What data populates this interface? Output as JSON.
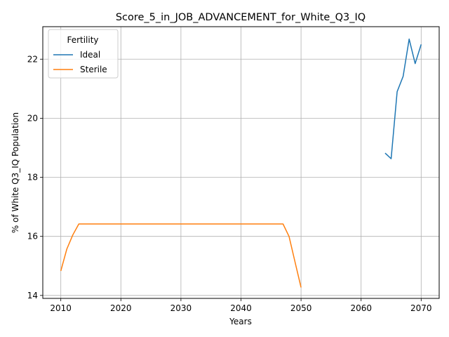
{
  "chart_data": {
    "type": "line",
    "title": "Score_5_in_JOB_ADVANCEMENT_for_White_Q3_IQ",
    "xlabel": "Years",
    "ylabel": "% of White Q3_IQ Population",
    "xlim": [
      2007,
      2073
    ],
    "ylim": [
      13.9,
      23.1
    ],
    "xticks": [
      2010,
      2020,
      2030,
      2040,
      2050,
      2060,
      2070
    ],
    "yticks": [
      14,
      16,
      18,
      20,
      22
    ],
    "grid": true,
    "legend": {
      "title": "Fertility",
      "placement": "top-left"
    },
    "series": [
      {
        "name": "Ideal",
        "color": "#1f77b4",
        "x": [
          2064,
          2065,
          2066,
          2067,
          2068,
          2069,
          2070
        ],
        "y": [
          18.82,
          18.63,
          20.9,
          21.42,
          22.68,
          21.85,
          22.5
        ]
      },
      {
        "name": "Sterile",
        "color": "#ff7f0e",
        "x": [
          2010,
          2011,
          2012,
          2013,
          2014,
          2015,
          2016,
          2017,
          2018,
          2019,
          2020,
          2021,
          2022,
          2023,
          2024,
          2025,
          2026,
          2027,
          2028,
          2029,
          2030,
          2031,
          2032,
          2033,
          2034,
          2035,
          2036,
          2037,
          2038,
          2039,
          2040,
          2041,
          2042,
          2043,
          2044,
          2045,
          2046,
          2047,
          2048,
          2049,
          2050
        ],
        "y": [
          14.83,
          15.57,
          16.05,
          16.42,
          16.42,
          16.42,
          16.42,
          16.42,
          16.42,
          16.42,
          16.42,
          16.42,
          16.42,
          16.42,
          16.42,
          16.42,
          16.42,
          16.42,
          16.42,
          16.42,
          16.42,
          16.42,
          16.42,
          16.42,
          16.42,
          16.42,
          16.42,
          16.42,
          16.42,
          16.42,
          16.42,
          16.42,
          16.42,
          16.42,
          16.42,
          16.42,
          16.42,
          16.42,
          16.0,
          15.13,
          14.27
        ]
      }
    ]
  }
}
